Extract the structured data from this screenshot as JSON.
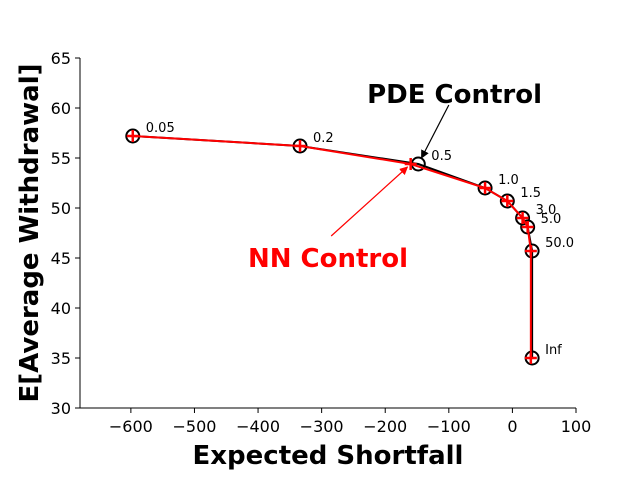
{
  "chart_data": {
    "type": "line",
    "xlabel": "Expected Shortfall",
    "ylabel": "E[Average Withdrawal]",
    "xlim": [
      -680,
      100
    ],
    "ylim": [
      30,
      65
    ],
    "xticks": [
      -600,
      -500,
      -400,
      -300,
      -200,
      -100,
      0,
      100
    ],
    "yticks": [
      30,
      35,
      40,
      45,
      50,
      55,
      60,
      65
    ],
    "grid": false,
    "series": [
      {
        "name": "PDE Control",
        "color": "#000000",
        "marker": "circle",
        "x": [
          -597,
          -334,
          -148,
          -43,
          -8,
          16,
          24,
          31,
          31
        ],
        "y": [
          57.2,
          56.2,
          54.4,
          52.0,
          50.7,
          49.0,
          48.1,
          45.7,
          35.0
        ]
      },
      {
        "name": "NN Control",
        "color": "#ff0000",
        "marker": "plus",
        "x": [
          -597,
          -334,
          -160,
          -43,
          -8,
          16,
          24,
          29,
          29
        ],
        "y": [
          57.2,
          56.2,
          54.4,
          52.0,
          50.7,
          49.0,
          48.1,
          45.7,
          35.0
        ]
      }
    ],
    "point_labels": [
      "0.05",
      "0.2",
      "0.5",
      "1.0",
      "1.5",
      "3.0",
      "5.0",
      "50.0",
      "Inf"
    ],
    "annotations": [
      {
        "text": "PDE Control",
        "color": "#000000",
        "text_at": [
          -91,
          61.4
        ],
        "arrow_to": [
          -143,
          55.0
        ],
        "arrow_from": [
          -100,
          60.3
        ]
      },
      {
        "text": "NN Control",
        "color": "#ff0000",
        "text_at": [
          -290,
          45.0
        ],
        "arrow_to": [
          -165,
          54.1
        ],
        "arrow_from": [
          -285,
          47.2
        ]
      }
    ]
  }
}
